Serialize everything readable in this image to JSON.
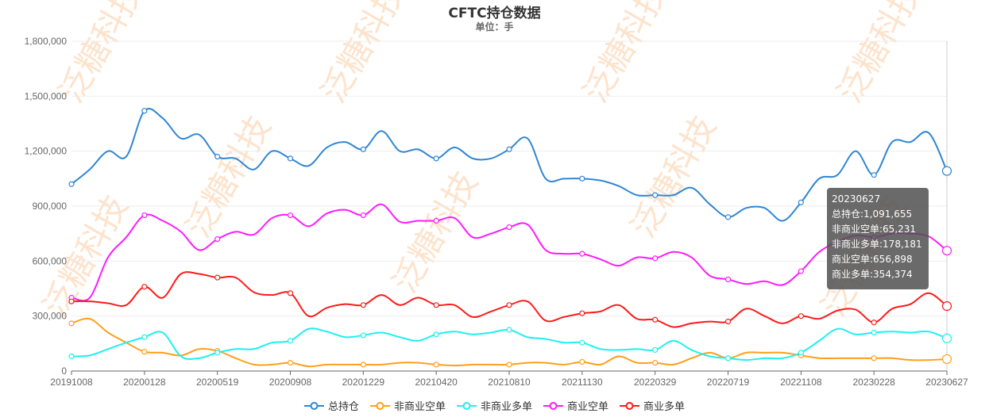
{
  "title": "CFTC持仓数据",
  "subtitle": "单位：手",
  "watermark": "泛糖科技",
  "tooltip": {
    "date": "20230627",
    "lines": [
      "总持仓:1,091,655",
      "非商业空单:65,231",
      "非商业多单:178,181",
      "商业空单:656,898",
      "商业多单:354,374"
    ]
  },
  "chart_data": {
    "type": "line",
    "title": "CFTC持仓数据",
    "subtitle": "单位：手",
    "ylim": [
      0,
      1800000
    ],
    "yticks": [
      "0",
      "300,000",
      "600,000",
      "900,000",
      "1,200,000",
      "1,500,000",
      "1,800,000"
    ],
    "yticks_values": [
      0,
      300000,
      600000,
      900000,
      1200000,
      1500000,
      1800000
    ],
    "xtick_labels": [
      "20191008",
      "20200128",
      "20200519",
      "20200908",
      "20201229",
      "20210420",
      "20210810",
      "20211130",
      "20220329",
      "20220719",
      "20221108",
      "20230228",
      "20230627"
    ],
    "grid": true,
    "legend_position": "bottom",
    "x": [
      "20191008",
      "20191105",
      "20191203",
      "20191231",
      "20200128",
      "20200225",
      "20200324",
      "20200421",
      "20200519",
      "20200616",
      "20200714",
      "20200811",
      "20200908",
      "20201006",
      "20201103",
      "20201201",
      "20201229",
      "20210126",
      "20210223",
      "20210323",
      "20210420",
      "20210518",
      "20210615",
      "20210713",
      "20210810",
      "20210907",
      "20211005",
      "20211102",
      "20211130",
      "20211228",
      "20220125",
      "20220301",
      "20220329",
      "20220426",
      "20220524",
      "20220621",
      "20220719",
      "20220816",
      "20220913",
      "20221011",
      "20221108",
      "20221206",
      "20230103",
      "20230131",
      "20230228",
      "20230328",
      "20230425",
      "20230523",
      "20230627"
    ],
    "series": [
      {
        "name": "总持仓",
        "color": "#2f86d4",
        "values": [
          1020000,
          1100000,
          1200000,
          1170000,
          1420000,
          1380000,
          1270000,
          1290000,
          1170000,
          1160000,
          1100000,
          1200000,
          1160000,
          1120000,
          1220000,
          1250000,
          1210000,
          1310000,
          1200000,
          1210000,
          1160000,
          1220000,
          1160000,
          1160000,
          1210000,
          1270000,
          1050000,
          1050000,
          1050000,
          1040000,
          1010000,
          960000,
          960000,
          960000,
          1000000,
          910000,
          840000,
          890000,
          890000,
          820000,
          920000,
          1050000,
          1070000,
          1200000,
          1070000,
          1250000,
          1250000,
          1300000,
          1091655
        ]
      },
      {
        "name": "非商业空单",
        "color": "#ff9f1a",
        "values": [
          260000,
          285000,
          210000,
          155000,
          105000,
          100000,
          85000,
          120000,
          110000,
          70000,
          35000,
          35000,
          45000,
          25000,
          35000,
          35000,
          35000,
          35000,
          45000,
          45000,
          35000,
          30000,
          35000,
          35000,
          35000,
          45000,
          45000,
          35000,
          50000,
          35000,
          80000,
          45000,
          45000,
          35000,
          70000,
          100000,
          70000,
          100000,
          100000,
          100000,
          85000,
          70000,
          70000,
          70000,
          70000,
          70000,
          60000,
          60000,
          65231
        ]
      },
      {
        "name": "非商业多单",
        "color": "#1ef0f0",
        "values": [
          80000,
          85000,
          120000,
          155000,
          185000,
          210000,
          80000,
          70000,
          100000,
          120000,
          120000,
          155000,
          165000,
          230000,
          215000,
          185000,
          195000,
          210000,
          185000,
          165000,
          200000,
          215000,
          200000,
          210000,
          225000,
          185000,
          175000,
          155000,
          155000,
          120000,
          115000,
          120000,
          115000,
          165000,
          115000,
          80000,
          70000,
          60000,
          70000,
          70000,
          100000,
          165000,
          230000,
          200000,
          210000,
          215000,
          210000,
          215000,
          178181
        ]
      },
      {
        "name": "商业空单",
        "color": "#ff1aff",
        "values": [
          400000,
          400000,
          620000,
          730000,
          850000,
          820000,
          760000,
          660000,
          720000,
          760000,
          745000,
          835000,
          850000,
          790000,
          860000,
          880000,
          850000,
          910000,
          815000,
          820000,
          820000,
          835000,
          730000,
          750000,
          785000,
          800000,
          660000,
          640000,
          640000,
          610000,
          575000,
          620000,
          615000,
          650000,
          620000,
          520000,
          500000,
          475000,
          490000,
          470000,
          545000,
          650000,
          705000,
          740000,
          730000,
          750000,
          750000,
          735000,
          656898
        ]
      },
      {
        "name": "商业多单",
        "color": "#ff1a1a",
        "values": [
          380000,
          380000,
          370000,
          360000,
          460000,
          400000,
          530000,
          530000,
          510000,
          510000,
          430000,
          415000,
          425000,
          300000,
          345000,
          365000,
          360000,
          415000,
          360000,
          400000,
          360000,
          360000,
          295000,
          325000,
          360000,
          380000,
          275000,
          295000,
          315000,
          325000,
          360000,
          285000,
          280000,
          240000,
          260000,
          270000,
          270000,
          340000,
          300000,
          260000,
          300000,
          285000,
          330000,
          335000,
          265000,
          340000,
          365000,
          425000,
          354374
        ]
      }
    ]
  }
}
